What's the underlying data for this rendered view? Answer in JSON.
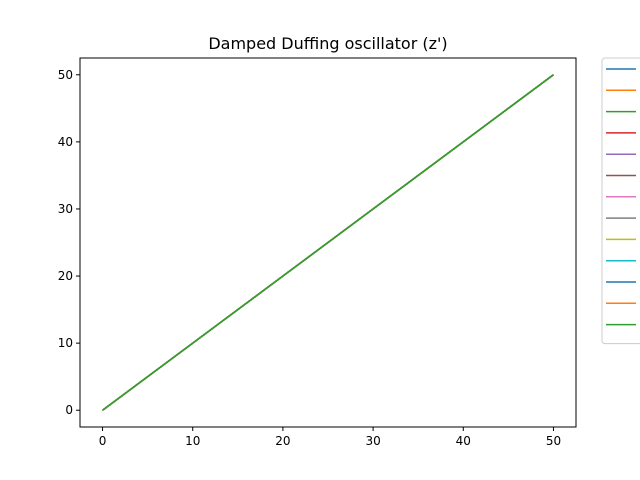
{
  "chart_data": {
    "type": "line",
    "title": "Damped Duffing oscillator (z')",
    "xlabel": "",
    "ylabel": "",
    "xlim": [
      -2.5,
      52.5
    ],
    "ylim": [
      -2.5,
      52.5
    ],
    "xticks": [
      0,
      10,
      20,
      30,
      40,
      50
    ],
    "yticks": [
      0,
      10,
      20,
      30,
      40,
      50
    ],
    "grid": false,
    "legend_position": "outside-right",
    "series": [
      {
        "color": "#1f77b4",
        "x": [
          0,
          50
        ],
        "y": [
          0,
          50
        ]
      },
      {
        "color": "#ff7f0e",
        "x": [
          0,
          50
        ],
        "y": [
          0,
          50
        ]
      },
      {
        "color": "#2ca02c",
        "x": [
          0,
          50
        ],
        "y": [
          0,
          50
        ]
      },
      {
        "color": "#d62728",
        "x": [
          0,
          50
        ],
        "y": [
          0,
          50
        ]
      },
      {
        "color": "#9467bd",
        "x": [
          0,
          50
        ],
        "y": [
          0,
          50
        ]
      },
      {
        "color": "#8c564b",
        "x": [
          0,
          50
        ],
        "y": [
          0,
          50
        ]
      },
      {
        "color": "#e377c2",
        "x": [
          0,
          50
        ],
        "y": [
          0,
          50
        ]
      },
      {
        "color": "#7f7f7f",
        "x": [
          0,
          50
        ],
        "y": [
          0,
          50
        ]
      },
      {
        "color": "#bcbd22",
        "x": [
          0,
          50
        ],
        "y": [
          0,
          50
        ]
      },
      {
        "color": "#17becf",
        "x": [
          0,
          50
        ],
        "y": [
          0,
          50
        ]
      },
      {
        "color": "#1f77b4",
        "x": [
          0,
          50
        ],
        "y": [
          0,
          50
        ]
      },
      {
        "color": "#ff7f0e",
        "x": [
          0,
          50
        ],
        "y": [
          0,
          50
        ]
      },
      {
        "color": "#2ca02c",
        "x": [
          0,
          50
        ],
        "y": [
          0,
          50
        ]
      }
    ]
  }
}
